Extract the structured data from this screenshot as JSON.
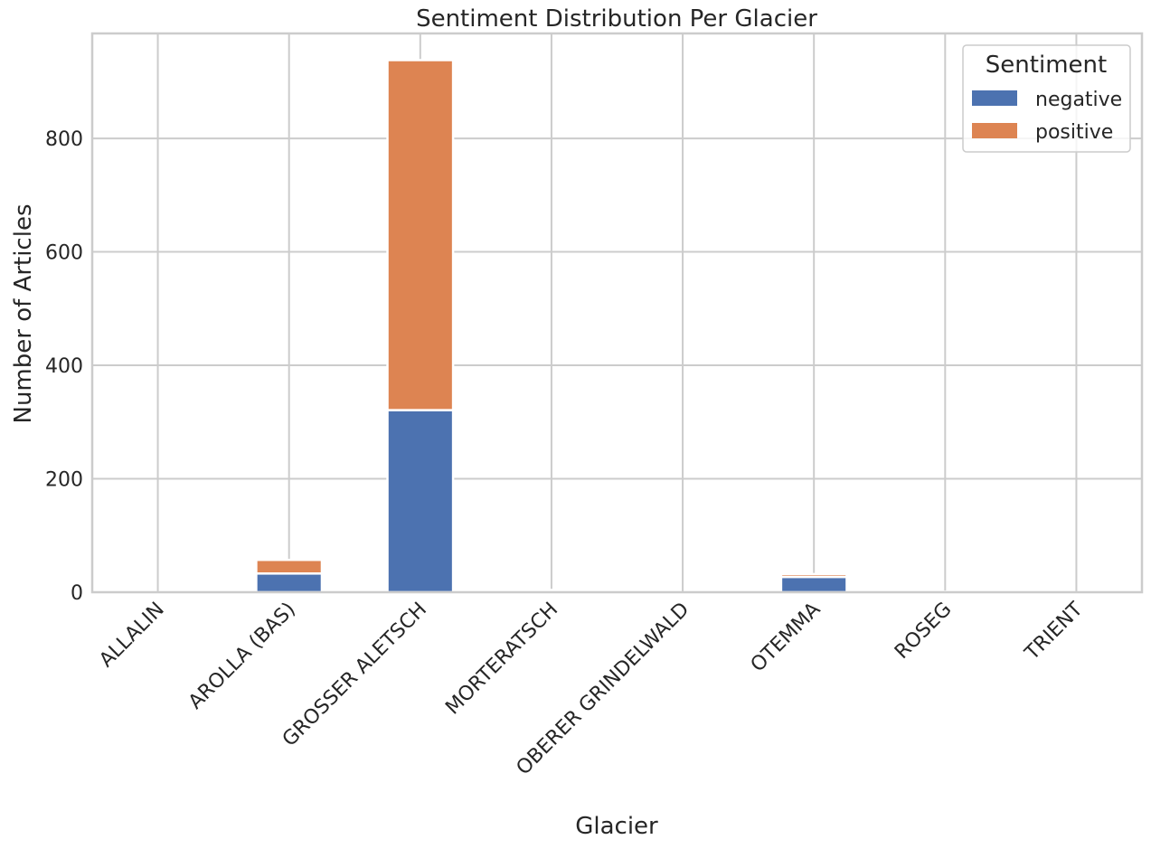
{
  "chart_data": {
    "type": "bar",
    "stacked": true,
    "title": "Sentiment Distribution Per Glacier",
    "xlabel": "Glacier",
    "ylabel": "Number of Articles",
    "categories": [
      "ALLALIN",
      "AROLLA (BAS)",
      "GROSSER ALETSCH",
      "MORTERATSCH",
      "OBERER GRINDELWALD",
      "OTEMMA",
      "ROSEG",
      "TRIENT"
    ],
    "series": [
      {
        "name": "negative",
        "color": "#4c72b0",
        "values": [
          0,
          33,
          321,
          4,
          0,
          27,
          1,
          0
        ]
      },
      {
        "name": "positive",
        "color": "#dd8452",
        "values": [
          0,
          24,
          617,
          0,
          0,
          5,
          0,
          0
        ]
      }
    ],
    "ylim": [
      0,
      985
    ],
    "yticks": [
      0,
      200,
      400,
      600,
      800
    ],
    "grid": true,
    "legend": {
      "title": "Sentiment",
      "placement": "top-right"
    }
  }
}
